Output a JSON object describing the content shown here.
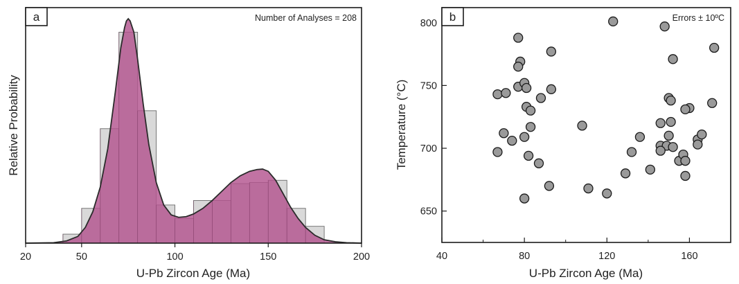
{
  "chart_data": [
    {
      "panel_label": "a",
      "type": "bar",
      "annotation": "Number of Analyses = 208",
      "xlabel": "U-Pb Zircon Age (Ma)",
      "ylabel": "Relative Probability",
      "xlim": [
        20,
        200
      ],
      "xticks": [
        20,
        50,
        100,
        150,
        200
      ],
      "ylim": [
        0,
        1
      ],
      "colors": {
        "histogram_fill": "#d9d9d9",
        "curve_fill": "#b3548f",
        "curve_line": "#2b2b2b"
      },
      "histogram": {
        "bin_width": 10,
        "bins": [
          {
            "x0": 40,
            "value": 0.04
          },
          {
            "x0": 50,
            "value": 0.155
          },
          {
            "x0": 60,
            "value": 0.51
          },
          {
            "x0": 70,
            "value": 0.94
          },
          {
            "x0": 80,
            "value": 0.59
          },
          {
            "x0": 90,
            "value": 0.17
          },
          {
            "x0": 100,
            "value": 0.11
          },
          {
            "x0": 110,
            "value": 0.19
          },
          {
            "x0": 120,
            "value": 0.19
          },
          {
            "x0": 130,
            "value": 0.265
          },
          {
            "x0": 140,
            "value": 0.27
          },
          {
            "x0": 150,
            "value": 0.28
          },
          {
            "x0": 160,
            "value": 0.155
          },
          {
            "x0": 170,
            "value": 0.075
          }
        ]
      },
      "probability_curve": {
        "x": [
          20,
          35,
          42,
          48,
          52,
          56,
          60,
          64,
          68,
          71,
          73,
          74,
          75,
          76,
          78,
          80,
          83,
          86,
          90,
          94,
          98,
          102,
          106,
          110,
          115,
          120,
          125,
          130,
          135,
          140,
          144,
          147,
          150,
          154,
          158,
          162,
          166,
          170,
          175,
          180,
          186,
          192,
          200
        ],
        "y": [
          0,
          0.002,
          0.01,
          0.03,
          0.07,
          0.14,
          0.25,
          0.42,
          0.67,
          0.87,
          0.96,
          0.99,
          1.0,
          0.99,
          0.94,
          0.82,
          0.62,
          0.44,
          0.27,
          0.17,
          0.126,
          0.115,
          0.118,
          0.13,
          0.155,
          0.19,
          0.23,
          0.27,
          0.3,
          0.32,
          0.328,
          0.33,
          0.32,
          0.28,
          0.22,
          0.16,
          0.11,
          0.07,
          0.035,
          0.015,
          0.006,
          0.002,
          0
        ]
      }
    },
    {
      "panel_label": "b",
      "type": "scatter",
      "annotation": "Errors ± 10ºC",
      "xlabel": "U-Pb Zircon Age (Ma)",
      "ylabel": "Temperature (°C)",
      "xlim": [
        40,
        180
      ],
      "xticks": [
        40,
        80,
        120,
        160
      ],
      "xminor": [
        60,
        100,
        140
      ],
      "ylim": [
        625,
        812
      ],
      "yticks": [
        650,
        700,
        750,
        800
      ],
      "colors": {
        "marker_fill": "#9a9a9a",
        "marker_edge": "#1a1a1a"
      },
      "points": [
        [
          77,
          788
        ],
        [
          78,
          769
        ],
        [
          77,
          765
        ],
        [
          93,
          777
        ],
        [
          123,
          801
        ],
        [
          148,
          797
        ],
        [
          172,
          780
        ],
        [
          152,
          771
        ],
        [
          67,
          743
        ],
        [
          71,
          744
        ],
        [
          77,
          749
        ],
        [
          80,
          752
        ],
        [
          81,
          748
        ],
        [
          93,
          747
        ],
        [
          88,
          740
        ],
        [
          81,
          733
        ],
        [
          83,
          730
        ],
        [
          150,
          740
        ],
        [
          151,
          738
        ],
        [
          160,
          732
        ],
        [
          158,
          731
        ],
        [
          171,
          736
        ],
        [
          70,
          712
        ],
        [
          74,
          706
        ],
        [
          80,
          709
        ],
        [
          83,
          717
        ],
        [
          108,
          718
        ],
        [
          136,
          709
        ],
        [
          146,
          720
        ],
        [
          151,
          721
        ],
        [
          150,
          710
        ],
        [
          146,
          702
        ],
        [
          149,
          702
        ],
        [
          152,
          701
        ],
        [
          146,
          698
        ],
        [
          164,
          707
        ],
        [
          166,
          711
        ],
        [
          164,
          703
        ],
        [
          67,
          697
        ],
        [
          82,
          694
        ],
        [
          87,
          688
        ],
        [
          132,
          697
        ],
        [
          129,
          680
        ],
        [
          141,
          683
        ],
        [
          155,
          690
        ],
        [
          157,
          695
        ],
        [
          158,
          690
        ],
        [
          158,
          678
        ],
        [
          92,
          670
        ],
        [
          111,
          668
        ],
        [
          120,
          664
        ],
        [
          80,
          660
        ]
      ]
    }
  ]
}
